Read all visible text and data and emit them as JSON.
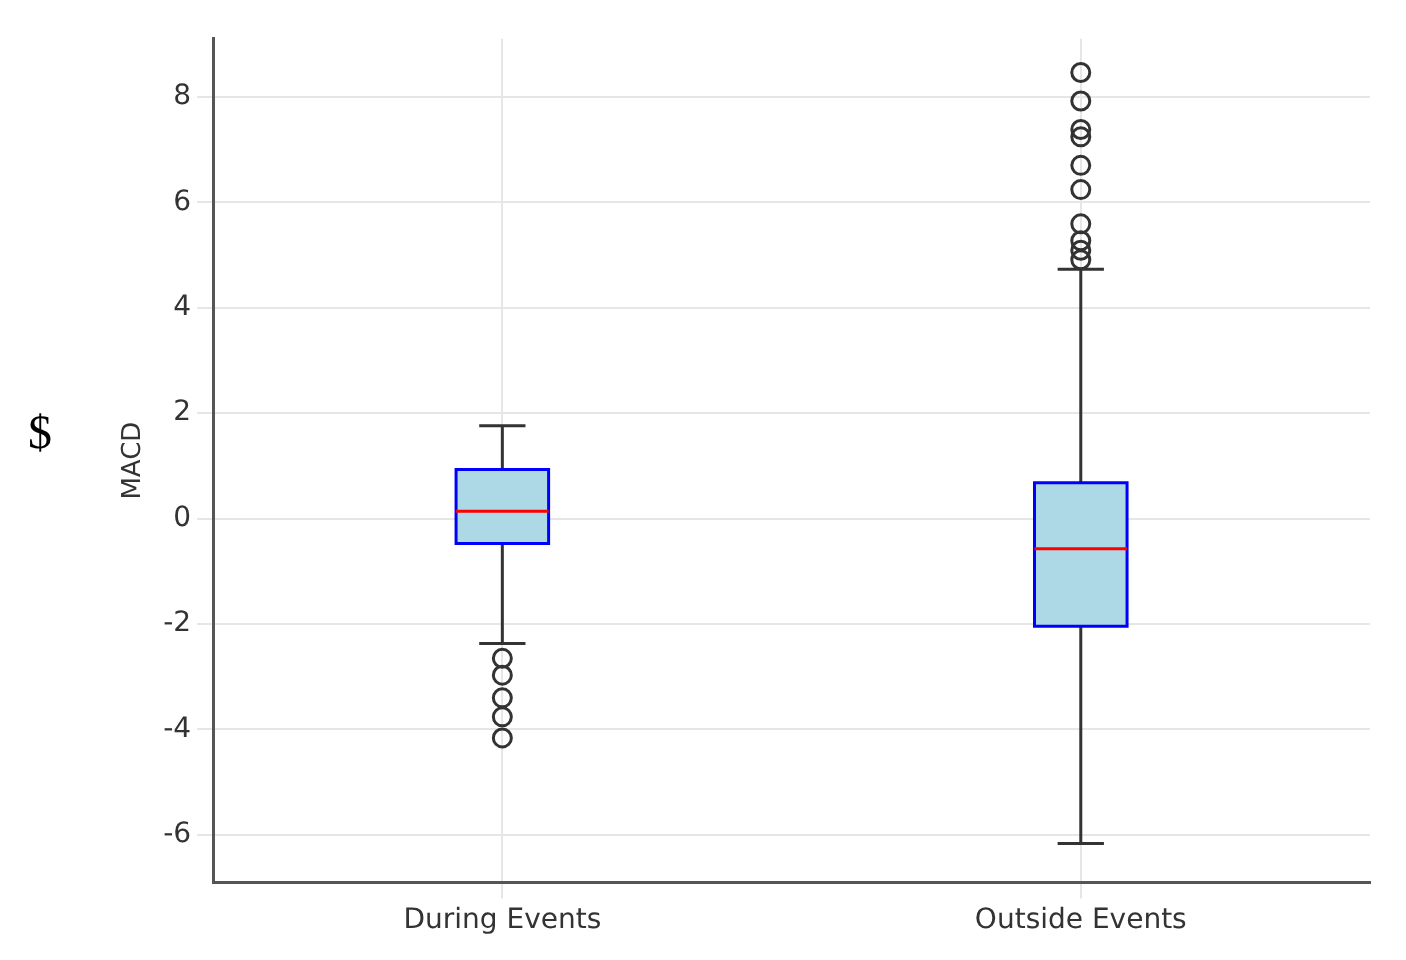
{
  "chart_data": {
    "type": "box",
    "ylabel": "MACD",
    "categories": [
      "During Events",
      "Outside Events"
    ],
    "color": "#add8e6",
    "boxes": [
      {
        "low": -2.37,
        "q1": -0.47,
        "median": 0.14,
        "q3": 0.93,
        "high": 1.76,
        "outliers": [
          -2.65,
          -2.97,
          -3.4,
          -3.76,
          -4.16
        ]
      },
      {
        "low": -6.16,
        "q1": -2.04,
        "median": -0.57,
        "q3": 0.68,
        "high": 4.73,
        "outliers": [
          8.46,
          7.92,
          7.38,
          7.24,
          6.7,
          6.24,
          5.59,
          5.27,
          5.09,
          4.91
        ]
      }
    ],
    "ylim": [
      -6.9,
      9.1
    ],
    "yticks": [
      -6,
      -4,
      -2,
      0,
      2,
      4,
      6,
      8
    ],
    "grid": true,
    "annotations": [
      "$"
    ]
  }
}
